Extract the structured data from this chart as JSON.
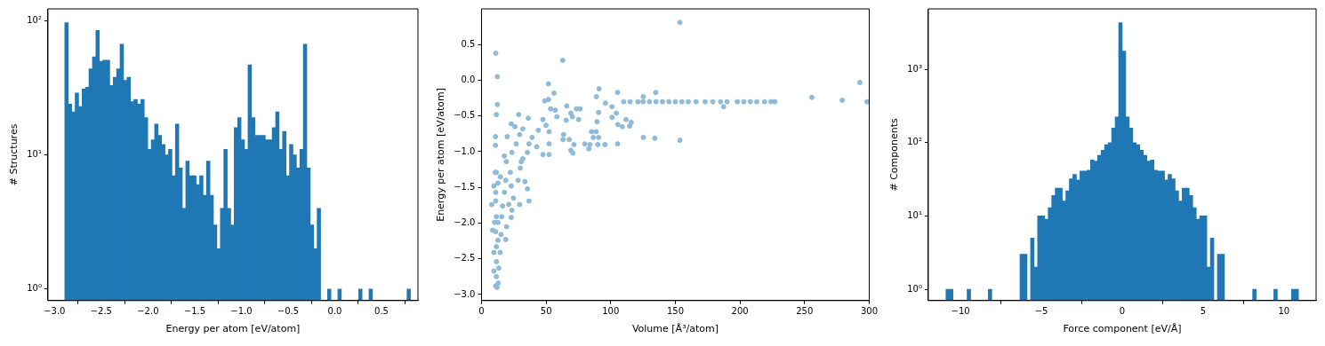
{
  "chart_data": [
    {
      "type": "histogram",
      "xlabel": "Energy per atom [eV/atom]",
      "ylabel": "# Structures",
      "color": "#1f77b4",
      "log": "y",
      "bins": [
        -2.89,
        -2.853,
        -2.816,
        -2.779,
        -2.742,
        -2.705,
        -2.668,
        -2.631,
        -2.594,
        -2.557,
        -2.52,
        -2.483,
        -2.446,
        -2.409,
        -2.372,
        -2.335,
        -2.298,
        -2.261,
        -2.224,
        -2.187,
        -2.15,
        -2.113,
        -2.076,
        -2.039,
        -2.002,
        -1.965,
        -1.928,
        -1.891,
        -1.854,
        -1.817,
        -1.78,
        -1.743,
        -1.706,
        -1.669,
        -1.632,
        -1.595,
        -1.558,
        -1.521,
        -1.484,
        -1.447,
        -1.41,
        -1.373,
        -1.336,
        -1.299,
        -1.262,
        -1.225,
        -1.188,
        -1.151,
        -1.114,
        -1.077,
        -1.04,
        -1.003,
        -0.966,
        -0.929,
        -0.892,
        -0.855,
        -0.818,
        -0.781,
        -0.744,
        -0.707,
        -0.67,
        -0.633,
        -0.596,
        -0.559,
        -0.522,
        -0.485,
        -0.448,
        -0.411,
        -0.374,
        -0.337,
        -0.3,
        -0.263,
        -0.226,
        -0.189,
        -0.152,
        -0.115,
        -0.078,
        -0.041,
        -0.004,
        0.033,
        0.07,
        0.107,
        0.144,
        0.181,
        0.218,
        0.255,
        0.292,
        0.329,
        0.366,
        0.403,
        0.44,
        0.477,
        0.514,
        0.551,
        0.588,
        0.625,
        0.662,
        0.699,
        0.736,
        0.773,
        0.81
      ],
      "values": [
        97,
        24,
        21,
        29,
        23,
        31,
        32,
        44,
        54,
        85,
        50,
        51,
        51,
        33,
        38,
        44,
        67,
        36,
        38,
        25,
        26,
        24,
        26,
        19,
        11,
        13,
        17,
        14,
        12,
        10,
        11,
        7,
        17,
        8,
        4,
        9,
        7,
        7,
        6,
        7,
        5,
        9,
        5,
        3,
        2,
        4,
        11,
        4,
        3,
        16,
        19,
        13,
        11,
        47,
        19,
        14,
        14,
        14,
        13,
        13,
        16,
        21,
        11,
        15,
        7,
        12,
        10,
        8,
        11,
        67,
        8,
        3,
        2,
        4,
        null,
        null,
        1,
        null,
        null,
        1,
        null,
        null,
        null,
        null,
        null,
        1,
        null,
        null,
        1,
        null,
        null,
        null,
        null,
        null,
        null,
        null,
        null,
        null,
        null,
        1
      ],
      "xlim": [
        -3.07,
        0.89
      ],
      "xticks": [
        {
          "value": -3,
          "label": "−3.0"
        },
        {
          "value": -2.5,
          "label": "−2.5"
        },
        {
          "value": -2,
          "label": "−2.0"
        },
        {
          "value": -1.5,
          "label": "−1.5"
        },
        {
          "value": -1,
          "label": "−1.0"
        },
        {
          "value": -0.5,
          "label": "−0.5"
        },
        {
          "value": 0,
          "label": "0.0"
        },
        {
          "value": 0.5,
          "label": "0.5"
        }
      ],
      "ylim": [
        0.82,
        123
      ],
      "yticks": [
        {
          "value": 1,
          "label": "10⁰"
        },
        {
          "value": 10,
          "label": "10¹"
        },
        {
          "value": 100,
          "label": "10²"
        }
      ]
    },
    {
      "type": "scatter",
      "xlabel": "Volume [Å³/atom]",
      "ylabel": "Energy per atom [eV/atom]",
      "color": "#8fbbd9",
      "marker": "circle",
      "x": [
        11.0,
        12.2,
        12.2,
        11.5,
        10.8,
        10.8,
        153.5,
        62.8,
        51.8,
        56.1,
        90.9,
        105.3,
        134.8,
        125.2,
        292.8,
        255.6,
        279.1,
        298.3,
        110,
        115,
        121,
        125,
        130,
        135,
        140,
        145,
        150,
        155,
        160,
        166,
        173,
        179,
        185,
        190,
        198,
        203,
        208,
        213,
        219,
        224,
        227,
        187.3,
        153.5,
        125.2,
        134.1,
        105.3,
        101,
        101,
        104.3,
        105.5,
        108.9,
        111.8,
        114.6,
        115.8,
        95.9,
        90.6,
        88.9,
        89.4,
        85.1,
        88.7,
        86.5,
        90,
        95.5,
        90.6,
        79.9,
        83,
        83.9,
        70.3,
        73.4,
        76.3,
        66,
        69.1,
        75.1,
        65.5,
        63.5,
        63.1,
        67.9,
        71.5,
        69.1,
        70.7,
        57.1,
        58.3,
        47.5,
        49.9,
        52.3,
        43.9,
        52.3,
        52.3,
        47.5,
        42.7,
        39.1,
        36.7,
        35.5,
        31.9,
        30.7,
        30,
        28.3,
        33.6,
        35.5,
        36.7,
        29.5,
        24.7,
        23,
        18.7,
        22.3,
        19.2,
        17.7,
        23.5,
        19.9,
        23,
        28.8,
        25.9,
        31.9,
        36.2,
        29.5,
        26.8,
        48.9,
        51.8,
        53.5,
        23.5,
        23,
        19.4,
        18.7,
        21.1,
        17.7,
        11.5,
        14.6,
        7.9,
        8.6,
        11,
        11.5,
        11,
        11.5,
        11.5,
        11.5,
        12,
        11,
        12.9,
        13.4,
        14.4,
        15.1,
        15.6,
        16.3,
        9.6,
        9.6,
        10.1,
        9.6,
        11,
        12.7,
        12.7,
        12.7,
        10.6
      ],
      "values": [
        0.38,
        0.05,
        -0.34,
        -0.48,
        -0.79,
        -0.91,
        0.81,
        0.28,
        -0.05,
        -0.18,
        -0.12,
        -0.17,
        -0.17,
        -0.23,
        -0.03,
        -0.24,
        -0.28,
        -0.3,
        -0.3,
        -0.3,
        -0.3,
        -0.3,
        -0.3,
        -0.3,
        -0.3,
        -0.3,
        -0.3,
        -0.3,
        -0.3,
        -0.3,
        -0.3,
        -0.3,
        -0.3,
        -0.3,
        -0.3,
        -0.3,
        -0.3,
        -0.3,
        -0.3,
        -0.3,
        -0.3,
        -0.37,
        -0.84,
        -0.8,
        -0.81,
        -0.89,
        -0.52,
        -0.37,
        -0.46,
        -0.62,
        -0.65,
        -0.55,
        -0.64,
        -0.59,
        -0.32,
        -0.45,
        -0.23,
        -0.58,
        -0.72,
        -0.72,
        -0.8,
        -0.9,
        -0.9,
        -0.8,
        -0.89,
        -0.96,
        -0.9,
        -0.51,
        -0.4,
        -0.4,
        -0.36,
        -0.46,
        -0.55,
        -0.56,
        -0.76,
        -0.83,
        -0.83,
        -0.9,
        -0.98,
        -1.02,
        -0.42,
        -0.51,
        -0.55,
        -0.63,
        -0.72,
        -0.7,
        -0.89,
        -1.04,
        -1.04,
        -0.93,
        -0.8,
        -0.89,
        -1.01,
        -1.1,
        -1.14,
        -1.23,
        -1.4,
        -1.42,
        -1.52,
        -1.69,
        -1.74,
        -1.65,
        -1.48,
        -1.4,
        -1.29,
        -1.14,
        -1.06,
        -1.01,
        -0.79,
        -0.61,
        -0.48,
        -0.65,
        -0.68,
        -0.53,
        -0.76,
        -0.89,
        -0.29,
        -0.27,
        -0.4,
        -1.82,
        -1.92,
        -2.05,
        -2.23,
        -1.74,
        -1.57,
        -1.29,
        -1.35,
        -1.74,
        -2.1,
        -1.69,
        -1.91,
        -2.12,
        -2.33,
        -2.54,
        -2.75,
        -2.9,
        -2.88,
        -2.84,
        -2.63,
        -2.41,
        -2.16,
        -1.91,
        -1.76,
        -2.67,
        -2.41,
        -1.99,
        -1.48,
        -1.57,
        -1.44,
        -1.99,
        -2.24,
        -1.29
      ],
      "xlim": [
        0,
        300
      ],
      "xticks": [
        0,
        50,
        100,
        150,
        200,
        250,
        300
      ],
      "ylim": [
        -3.085,
        1.0
      ],
      "yticks": [
        {
          "value": -3,
          "label": "−3.0"
        },
        {
          "value": -2.5,
          "label": "−2.5"
        },
        {
          "value": -2,
          "label": "−2.0"
        },
        {
          "value": -1.5,
          "label": "−1.5"
        },
        {
          "value": -1,
          "label": "−1.0"
        },
        {
          "value": -0.5,
          "label": "−0.5"
        },
        {
          "value": 0,
          "label": "0.0"
        },
        {
          "value": 0.5,
          "label": "0.5"
        }
      ]
    },
    {
      "type": "histogram",
      "xlabel": "Force component [eV/Å]",
      "ylabel": "# Components",
      "color": "#1f77b4",
      "log": "y",
      "bins": [
        -10.9,
        -10.682,
        -10.464,
        -10.246,
        -10.028,
        -9.81,
        -9.592,
        -9.374,
        -9.156,
        -8.938,
        -8.72,
        -8.502,
        -8.284,
        -8.066,
        -7.848,
        -7.63,
        -7.412,
        -7.194,
        -6.976,
        -6.758,
        -6.54,
        -6.322,
        -6.104,
        -5.886,
        -5.668,
        -5.45,
        -5.232,
        -5.014,
        -4.796,
        -4.578,
        -4.36,
        -4.142,
        -3.924,
        -3.706,
        -3.488,
        -3.27,
        -3.052,
        -2.834,
        -2.616,
        -2.398,
        -2.18,
        -1.962,
        -1.744,
        -1.526,
        -1.308,
        -1.09,
        -0.872,
        -0.654,
        -0.436,
        -0.218,
        0,
        0.218,
        0.436,
        0.654,
        0.872,
        1.09,
        1.308,
        1.526,
        1.744,
        1.962,
        2.18,
        2.398,
        2.616,
        2.834,
        3.052,
        3.27,
        3.488,
        3.706,
        3.924,
        4.142,
        4.36,
        4.578,
        4.796,
        5.014,
        5.232,
        5.45,
        5.668,
        5.886,
        6.104,
        6.322,
        6.54,
        6.758,
        6.976,
        7.194,
        7.412,
        7.63,
        7.848,
        8.066,
        8.284,
        8.502,
        8.72,
        8.938,
        9.156,
        9.374,
        9.592,
        9.81,
        10.028,
        10.246,
        10.464,
        10.682,
        10.9
      ],
      "values": [
        1,
        1,
        null,
        null,
        null,
        null,
        1,
        null,
        null,
        null,
        null,
        null,
        1,
        null,
        null,
        null,
        null,
        null,
        null,
        null,
        null,
        3,
        3,
        null,
        5,
        2,
        10,
        10,
        9,
        13,
        19,
        24,
        24,
        16,
        22,
        32,
        37,
        31,
        41,
        41,
        42,
        58,
        56,
        67,
        79,
        94,
        100,
        158,
        224,
        4340,
        1778,
        224,
        158,
        100,
        94,
        79,
        67,
        56,
        58,
        42,
        41,
        41,
        31,
        37,
        32,
        22,
        16,
        24,
        24,
        19,
        13,
        9,
        10,
        10,
        2,
        5,
        null,
        3,
        3,
        null,
        null,
        null,
        null,
        null,
        null,
        null,
        null,
        1,
        null,
        null,
        null,
        null,
        null,
        1,
        null,
        null,
        null,
        null,
        1,
        1
      ],
      "xlim": [
        -11.99,
        11.99
      ],
      "xticks": [
        {
          "value": -10,
          "label": "−10"
        },
        {
          "value": -5,
          "label": "−5"
        },
        0,
        5,
        10
      ],
      "ylim": [
        0.7,
        6700
      ],
      "yticks": [
        {
          "value": 1,
          "label": "10⁰"
        },
        {
          "value": 10,
          "label": "10¹"
        },
        {
          "value": 100,
          "label": "10²"
        },
        {
          "value": 1000,
          "label": "10³"
        }
      ]
    }
  ]
}
